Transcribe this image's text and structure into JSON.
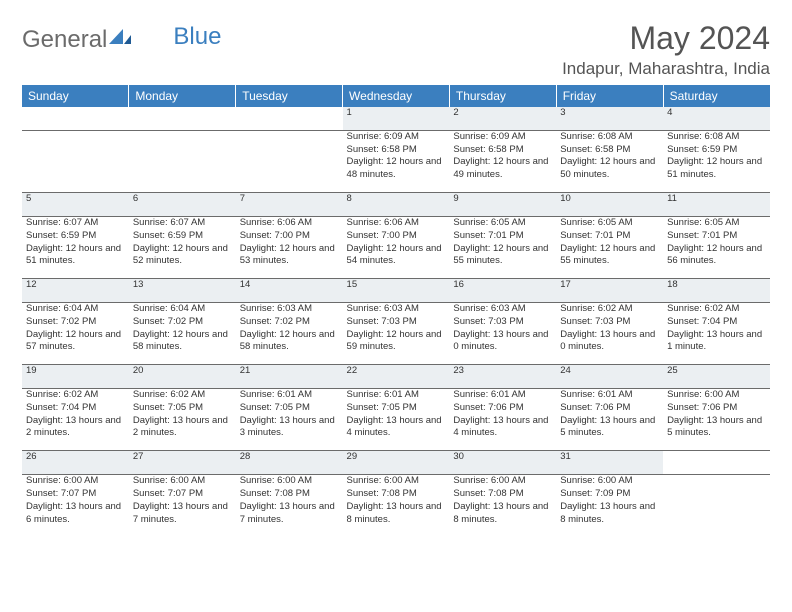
{
  "brand": {
    "part1": "General",
    "part2": "Blue"
  },
  "title": "May 2024",
  "location": "Indapur, Maharashtra, India",
  "colors": {
    "header_bg": "#3b7fbf",
    "header_text": "#ffffff",
    "daynum_bg": "#ebeff2",
    "text": "#333333",
    "title_color": "#545454",
    "border": "#6b6b6b"
  },
  "weekdays": [
    "Sunday",
    "Monday",
    "Tuesday",
    "Wednesday",
    "Thursday",
    "Friday",
    "Saturday"
  ],
  "weeks": [
    [
      null,
      null,
      null,
      {
        "n": "1",
        "sr": "6:09 AM",
        "ss": "6:58 PM",
        "dl": "Daylight: 12 hours and 48 minutes."
      },
      {
        "n": "2",
        "sr": "6:09 AM",
        "ss": "6:58 PM",
        "dl": "Daylight: 12 hours and 49 minutes."
      },
      {
        "n": "3",
        "sr": "6:08 AM",
        "ss": "6:58 PM",
        "dl": "Daylight: 12 hours and 50 minutes."
      },
      {
        "n": "4",
        "sr": "6:08 AM",
        "ss": "6:59 PM",
        "dl": "Daylight: 12 hours and 51 minutes."
      }
    ],
    [
      {
        "n": "5",
        "sr": "6:07 AM",
        "ss": "6:59 PM",
        "dl": "Daylight: 12 hours and 51 minutes."
      },
      {
        "n": "6",
        "sr": "6:07 AM",
        "ss": "6:59 PM",
        "dl": "Daylight: 12 hours and 52 minutes."
      },
      {
        "n": "7",
        "sr": "6:06 AM",
        "ss": "7:00 PM",
        "dl": "Daylight: 12 hours and 53 minutes."
      },
      {
        "n": "8",
        "sr": "6:06 AM",
        "ss": "7:00 PM",
        "dl": "Daylight: 12 hours and 54 minutes."
      },
      {
        "n": "9",
        "sr": "6:05 AM",
        "ss": "7:01 PM",
        "dl": "Daylight: 12 hours and 55 minutes."
      },
      {
        "n": "10",
        "sr": "6:05 AM",
        "ss": "7:01 PM",
        "dl": "Daylight: 12 hours and 55 minutes."
      },
      {
        "n": "11",
        "sr": "6:05 AM",
        "ss": "7:01 PM",
        "dl": "Daylight: 12 hours and 56 minutes."
      }
    ],
    [
      {
        "n": "12",
        "sr": "6:04 AM",
        "ss": "7:02 PM",
        "dl": "Daylight: 12 hours and 57 minutes."
      },
      {
        "n": "13",
        "sr": "6:04 AM",
        "ss": "7:02 PM",
        "dl": "Daylight: 12 hours and 58 minutes."
      },
      {
        "n": "14",
        "sr": "6:03 AM",
        "ss": "7:02 PM",
        "dl": "Daylight: 12 hours and 58 minutes."
      },
      {
        "n": "15",
        "sr": "6:03 AM",
        "ss": "7:03 PM",
        "dl": "Daylight: 12 hours and 59 minutes."
      },
      {
        "n": "16",
        "sr": "6:03 AM",
        "ss": "7:03 PM",
        "dl": "Daylight: 13 hours and 0 minutes."
      },
      {
        "n": "17",
        "sr": "6:02 AM",
        "ss": "7:03 PM",
        "dl": "Daylight: 13 hours and 0 minutes."
      },
      {
        "n": "18",
        "sr": "6:02 AM",
        "ss": "7:04 PM",
        "dl": "Daylight: 13 hours and 1 minute."
      }
    ],
    [
      {
        "n": "19",
        "sr": "6:02 AM",
        "ss": "7:04 PM",
        "dl": "Daylight: 13 hours and 2 minutes."
      },
      {
        "n": "20",
        "sr": "6:02 AM",
        "ss": "7:05 PM",
        "dl": "Daylight: 13 hours and 2 minutes."
      },
      {
        "n": "21",
        "sr": "6:01 AM",
        "ss": "7:05 PM",
        "dl": "Daylight: 13 hours and 3 minutes."
      },
      {
        "n": "22",
        "sr": "6:01 AM",
        "ss": "7:05 PM",
        "dl": "Daylight: 13 hours and 4 minutes."
      },
      {
        "n": "23",
        "sr": "6:01 AM",
        "ss": "7:06 PM",
        "dl": "Daylight: 13 hours and 4 minutes."
      },
      {
        "n": "24",
        "sr": "6:01 AM",
        "ss": "7:06 PM",
        "dl": "Daylight: 13 hours and 5 minutes."
      },
      {
        "n": "25",
        "sr": "6:00 AM",
        "ss": "7:06 PM",
        "dl": "Daylight: 13 hours and 5 minutes."
      }
    ],
    [
      {
        "n": "26",
        "sr": "6:00 AM",
        "ss": "7:07 PM",
        "dl": "Daylight: 13 hours and 6 minutes."
      },
      {
        "n": "27",
        "sr": "6:00 AM",
        "ss": "7:07 PM",
        "dl": "Daylight: 13 hours and 7 minutes."
      },
      {
        "n": "28",
        "sr": "6:00 AM",
        "ss": "7:08 PM",
        "dl": "Daylight: 13 hours and 7 minutes."
      },
      {
        "n": "29",
        "sr": "6:00 AM",
        "ss": "7:08 PM",
        "dl": "Daylight: 13 hours and 8 minutes."
      },
      {
        "n": "30",
        "sr": "6:00 AM",
        "ss": "7:08 PM",
        "dl": "Daylight: 13 hours and 8 minutes."
      },
      {
        "n": "31",
        "sr": "6:00 AM",
        "ss": "7:09 PM",
        "dl": "Daylight: 13 hours and 8 minutes."
      },
      null
    ]
  ]
}
